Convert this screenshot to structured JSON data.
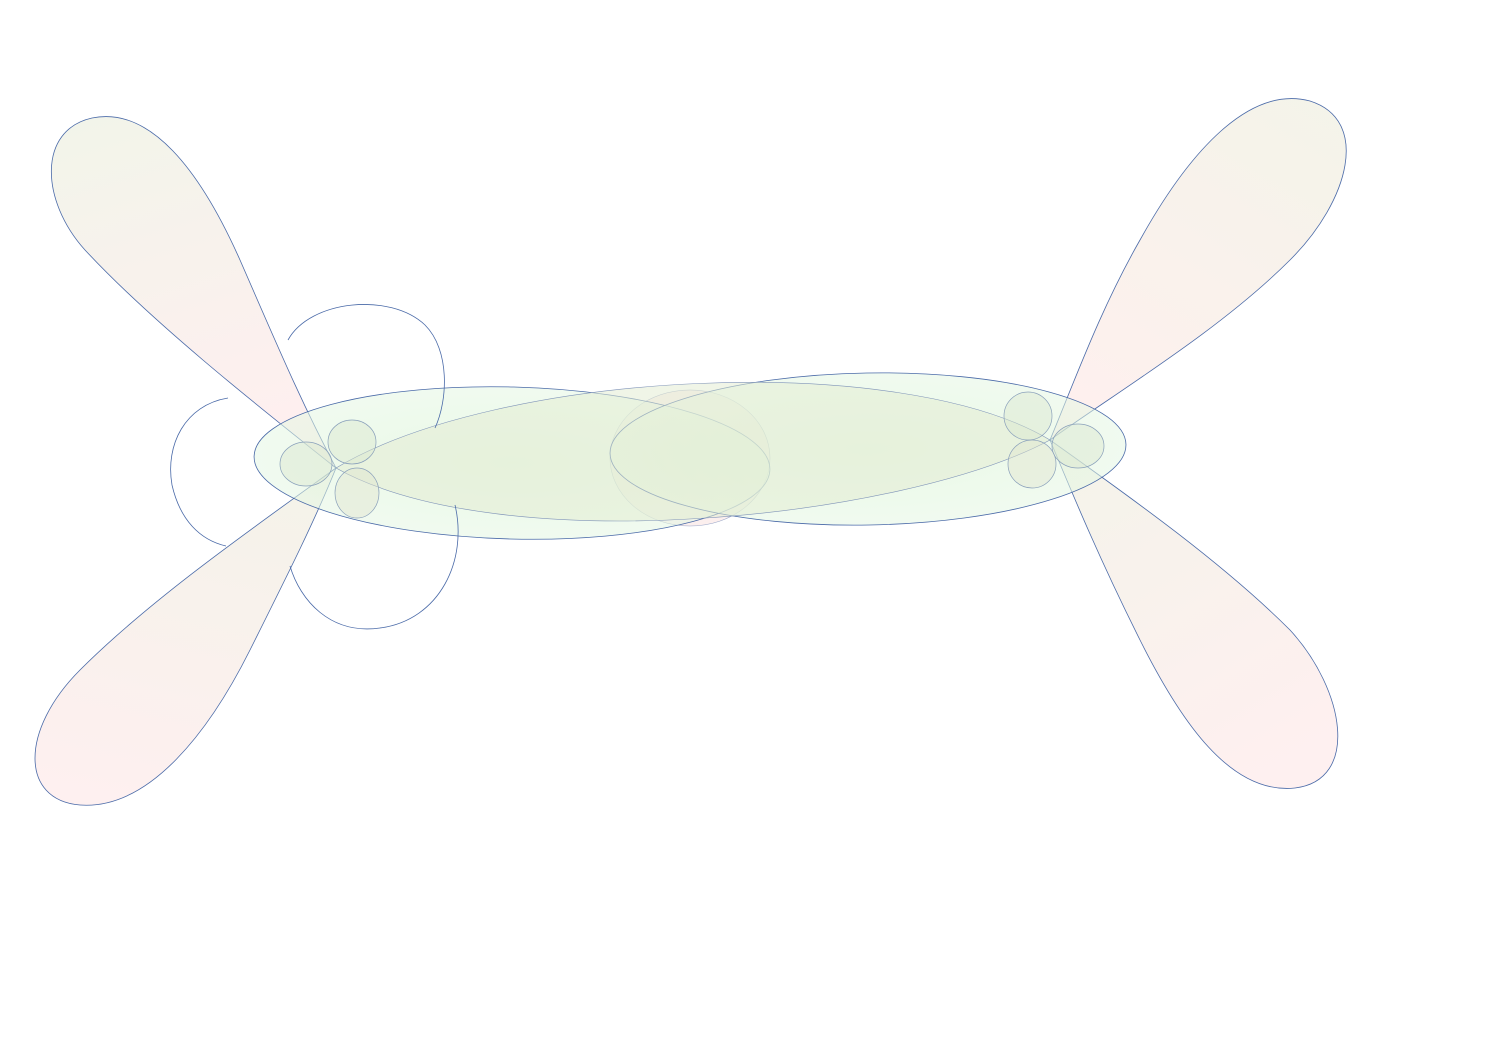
{
  "diagram": {
    "kind": "orbital-lobes",
    "colors": {
      "stroke": "#4a6aa8",
      "lobe_top": "#e9efdc",
      "lobe_bottom": "#fde3e3",
      "sigma_fill": "#dff6dc",
      "sigma_center": "#d3f0cc",
      "background": "#ffffff"
    },
    "atoms": [
      {
        "name": "left-atom"
      },
      {
        "name": "right-atom"
      }
    ],
    "parts": [
      "p-lobe-upper-left",
      "p-lobe-lower-left",
      "p-lobe-upper-right",
      "p-lobe-lower-right",
      "sigma-ellipse-left",
      "sigma-ellipse-right",
      "pi-arc-top-left",
      "pi-arc-left",
      "pi-arc-bottom-left"
    ]
  }
}
